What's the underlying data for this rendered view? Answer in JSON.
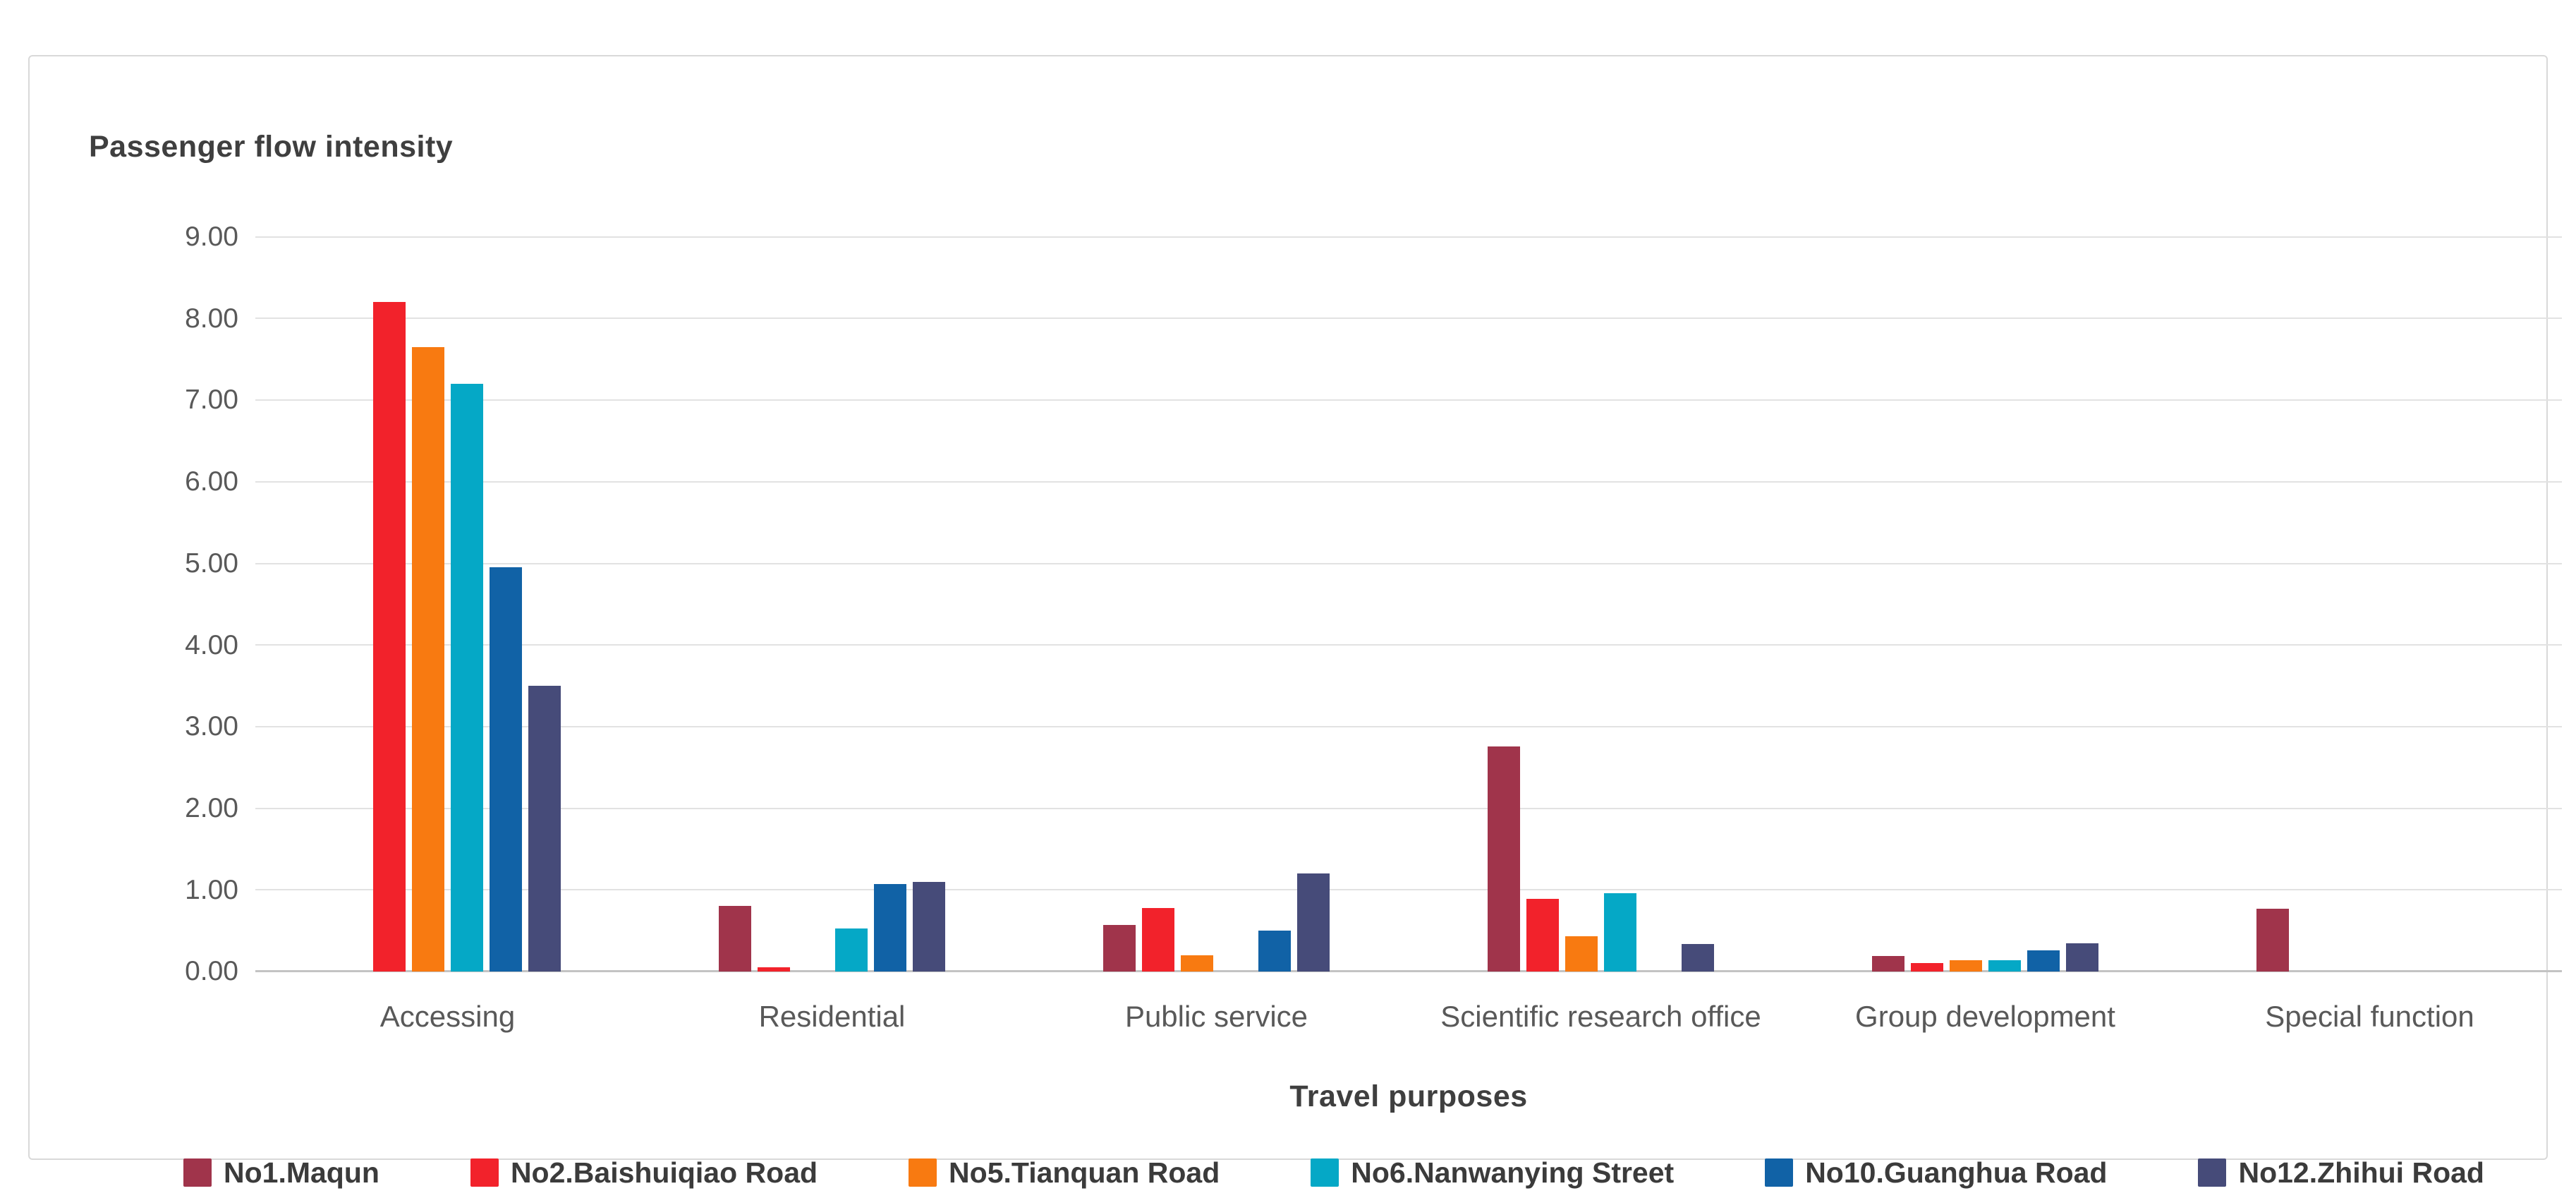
{
  "chart_data": {
    "type": "bar",
    "y_axis_title": "Passenger flow intensity",
    "x_axis_title": "Travel purposes",
    "categories": [
      "Accessing",
      "Residential",
      "Public service",
      "Scientific research office",
      "Group development",
      "Special function"
    ],
    "series": [
      {
        "name": "No1.Maqun",
        "color": "#a0344b",
        "values": [
          0,
          0.8,
          0.57,
          2.76,
          0.19,
          0.77
        ]
      },
      {
        "name": "No2.Baishuiqiao Road",
        "color": "#f2222b",
        "values": [
          8.2,
          0.05,
          0.78,
          0.89,
          0.1,
          0
        ]
      },
      {
        "name": "No5.Tianquan Road",
        "color": "#f87a11",
        "values": [
          7.65,
          0,
          0.2,
          0.43,
          0.14,
          0
        ]
      },
      {
        "name": "No6.Nanwanying Street",
        "color": "#05a8c6",
        "values": [
          7.2,
          0.53,
          0,
          0.96,
          0.14,
          0
        ]
      },
      {
        "name": "No10.Guanghua Road",
        "color": "#1162a6",
        "values": [
          4.95,
          1.07,
          0.5,
          0,
          0.26,
          0
        ]
      },
      {
        "name": "No12.Zhihui Road",
        "color": "#464b79",
        "values": [
          3.5,
          1.1,
          1.2,
          0.34,
          0.35,
          0
        ]
      }
    ],
    "ylim": [
      0,
      9
    ],
    "ytick_step": 1,
    "y_ticks": [
      "0.00",
      "1.00",
      "2.00",
      "3.00",
      "4.00",
      "5.00",
      "6.00",
      "7.00",
      "8.00",
      "9.00"
    ],
    "grid": true,
    "legend_position": "bottom",
    "title": ""
  },
  "style_colors": {
    "gridline": "#e2e2e2",
    "zero_axis": "#c3c3c3",
    "panel_border": "#d9d9d9",
    "axis_title_text": "#3f3f3f",
    "tick_text": "#595959",
    "category_text": "#595959",
    "legend_text": "#3b3b3b",
    "background": "#ffffff"
  }
}
